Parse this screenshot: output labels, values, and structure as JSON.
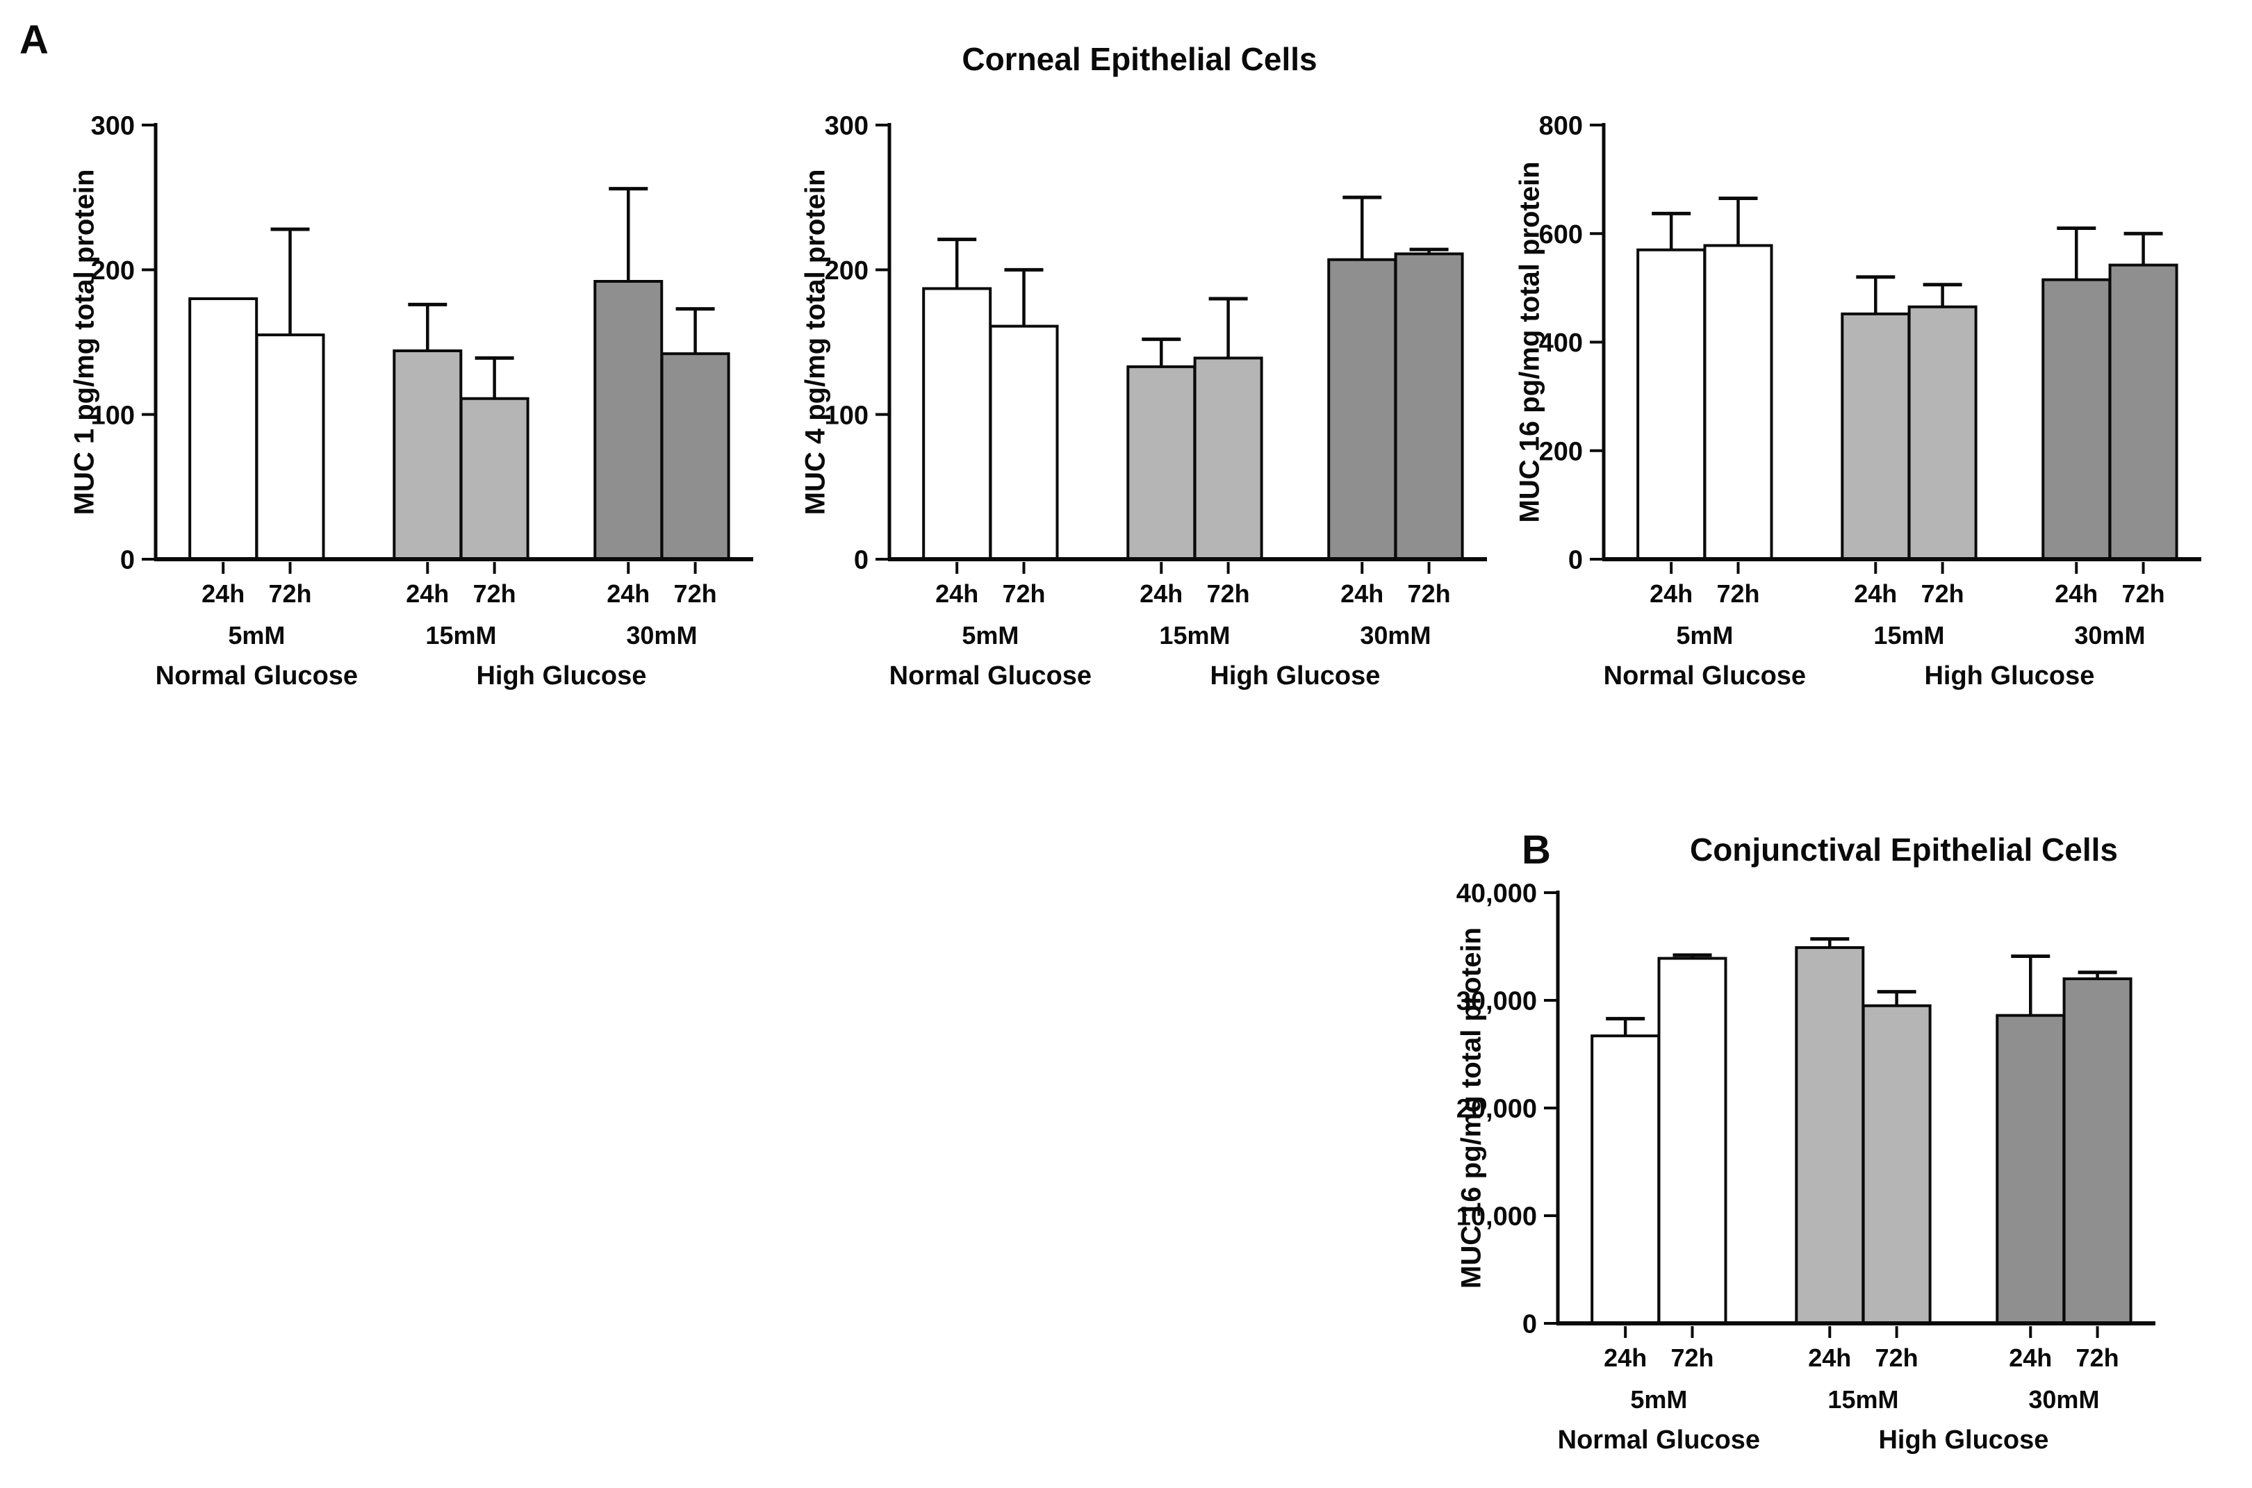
{
  "panels": {
    "a": {
      "letter": "A",
      "title": "Corneal Epithelial Cells"
    },
    "b": {
      "letter": "B",
      "title": "Conjunctival Epithelial Cells"
    }
  },
  "colors": {
    "normal_glucose_bar": "#ffffff",
    "high_glucose_15_bar": "#b5b5b5",
    "high_glucose_30_bar": "#8f8f8f",
    "axis": "#0a0a0a",
    "text": "#0a0a0a"
  },
  "chart_data": [
    {
      "id": "muc1-corneal",
      "panel": "A",
      "type": "bar",
      "ylabel": "MUC 1 pg/mg total protein",
      "ylim": [
        0,
        300
      ],
      "yticks": [
        {
          "v": 0,
          "label": "0"
        },
        {
          "v": 100,
          "label": "100"
        },
        {
          "v": 200,
          "label": "200"
        },
        {
          "v": 300,
          "label": "300"
        }
      ],
      "groups": [
        {
          "label": "5mM",
          "color": "normal_glucose_bar",
          "bars": [
            {
              "time": "24h",
              "value": 180,
              "error_top": null
            },
            {
              "time": "72h",
              "value": 155,
              "error_top": 228
            }
          ]
        },
        {
          "label": "15mM",
          "color": "high_glucose_15_bar",
          "bars": [
            {
              "time": "24h",
              "value": 144,
              "error_top": 176
            },
            {
              "time": "72h",
              "value": 111,
              "error_top": 139
            }
          ]
        },
        {
          "label": "30mM",
          "color": "high_glucose_30_bar",
          "bars": [
            {
              "time": "24h",
              "value": 192,
              "error_top": 256
            },
            {
              "time": "72h",
              "value": 142,
              "error_top": 173
            }
          ]
        }
      ],
      "condition_labels": [
        "Normal Glucose",
        "High Glucose"
      ]
    },
    {
      "id": "muc4-corneal",
      "panel": "A",
      "type": "bar",
      "ylabel": "MUC 4 pg/mg total protein",
      "ylim": [
        0,
        300
      ],
      "yticks": [
        {
          "v": 0,
          "label": "0"
        },
        {
          "v": 100,
          "label": "100"
        },
        {
          "v": 200,
          "label": "200"
        },
        {
          "v": 300,
          "label": "300"
        }
      ],
      "groups": [
        {
          "label": "5mM",
          "color": "normal_glucose_bar",
          "bars": [
            {
              "time": "24h",
              "value": 187,
              "error_top": 221
            },
            {
              "time": "72h",
              "value": 161,
              "error_top": 200
            }
          ]
        },
        {
          "label": "15mM",
          "color": "high_glucose_15_bar",
          "bars": [
            {
              "time": "24h",
              "value": 133,
              "error_top": 152
            },
            {
              "time": "72h",
              "value": 139,
              "error_top": 180
            }
          ]
        },
        {
          "label": "30mM",
          "color": "high_glucose_30_bar",
          "bars": [
            {
              "time": "24h",
              "value": 207,
              "error_top": 250
            },
            {
              "time": "72h",
              "value": 211,
              "error_top": 214
            }
          ]
        }
      ],
      "condition_labels": [
        "Normal Glucose",
        "High Glucose"
      ]
    },
    {
      "id": "muc16-corneal",
      "panel": "A",
      "type": "bar",
      "ylabel": "MUC 16 pg/mg total protein",
      "ylim": [
        0,
        800
      ],
      "yticks": [
        {
          "v": 0,
          "label": "0"
        },
        {
          "v": 200,
          "label": "200"
        },
        {
          "v": 400,
          "label": "400"
        },
        {
          "v": 600,
          "label": "600"
        },
        {
          "v": 800,
          "label": "800"
        }
      ],
      "groups": [
        {
          "label": "5mM",
          "color": "normal_glucose_bar",
          "bars": [
            {
              "time": "24h",
              "value": 570,
              "error_top": 637
            },
            {
              "time": "72h",
              "value": 578,
              "error_top": 665
            }
          ]
        },
        {
          "label": "15mM",
          "color": "high_glucose_15_bar",
          "bars": [
            {
              "time": "24h",
              "value": 452,
              "error_top": 520
            },
            {
              "time": "72h",
              "value": 465,
              "error_top": 506
            }
          ]
        },
        {
          "label": "30mM",
          "color": "high_glucose_30_bar",
          "bars": [
            {
              "time": "24h",
              "value": 515,
              "error_top": 610
            },
            {
              "time": "72h",
              "value": 542,
              "error_top": 600
            }
          ]
        }
      ],
      "condition_labels": [
        "Normal Glucose",
        "High Glucose"
      ]
    },
    {
      "id": "muc16-conjunctival",
      "panel": "B",
      "type": "bar",
      "ylabel": "MUC 16 pg/mg total protein",
      "ylim": [
        0,
        40000
      ],
      "yticks": [
        {
          "v": 0,
          "label": "0"
        },
        {
          "v": 10000,
          "label": "10,000"
        },
        {
          "v": 20000,
          "label": "20,000"
        },
        {
          "v": 30000,
          "label": "30,000"
        },
        {
          "v": 40000,
          "label": "40,000"
        }
      ],
      "groups": [
        {
          "label": "5mM",
          "color": "normal_glucose_bar",
          "bars": [
            {
              "time": "24h",
              "value": 26700,
              "error_top": 28300
            },
            {
              "time": "72h",
              "value": 33900,
              "error_top": 34200
            }
          ]
        },
        {
          "label": "15mM",
          "color": "high_glucose_15_bar",
          "bars": [
            {
              "time": "24h",
              "value": 34900,
              "error_top": 35700
            },
            {
              "time": "72h",
              "value": 29500,
              "error_top": 30800
            }
          ]
        },
        {
          "label": "30mM",
          "color": "high_glucose_30_bar",
          "bars": [
            {
              "time": "24h",
              "value": 28600,
              "error_top": 34100
            },
            {
              "time": "72h",
              "value": 32000,
              "error_top": 32600
            }
          ]
        }
      ],
      "condition_labels": [
        "Normal Glucose",
        "High Glucose"
      ]
    }
  ]
}
